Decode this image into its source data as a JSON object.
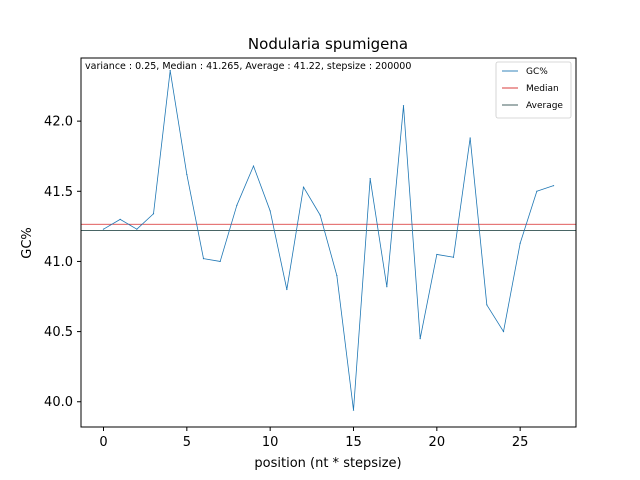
{
  "chart_data": {
    "type": "line",
    "title": "Nodularia spumigena",
    "xlabel": "position (nt * stepsize)",
    "ylabel": "GC%",
    "annotation": "variance : 0.25, Median : 41.265, Average : 41.22, stepsize : 200000",
    "xlim": [
      -1.35,
      28.35
    ],
    "ylim": [
      39.82,
      42.45
    ],
    "xticks": [
      0,
      5,
      10,
      15,
      20,
      25
    ],
    "yticks": [
      40.0,
      40.5,
      41.0,
      41.5,
      42.0
    ],
    "ytick_labels": [
      "40.0",
      "40.5",
      "41.0",
      "41.5",
      "42.0"
    ],
    "grid": false,
    "legend_position": "top-right",
    "x": [
      0,
      1,
      2,
      3,
      4,
      5,
      6,
      7,
      8,
      9,
      10,
      11,
      12,
      13,
      14,
      15,
      16,
      17,
      18,
      19,
      20,
      21,
      22,
      23,
      24,
      25,
      26,
      27
    ],
    "series": [
      {
        "name": "GC%",
        "color": "#1f77b4",
        "values": [
          41.23,
          41.3,
          41.23,
          41.34,
          42.36,
          41.62,
          41.02,
          41.0,
          41.4,
          41.68,
          41.36,
          40.8,
          41.53,
          41.33,
          40.9,
          39.94,
          41.59,
          40.82,
          42.11,
          40.45,
          41.05,
          41.03,
          41.88,
          40.69,
          40.5,
          41.13,
          41.5,
          41.54
        ]
      }
    ],
    "reference_lines": [
      {
        "name": "Median",
        "value": 41.265,
        "color": "#d62728"
      },
      {
        "name": "Average",
        "value": 41.22,
        "color": "#2f4f4f"
      }
    ]
  }
}
